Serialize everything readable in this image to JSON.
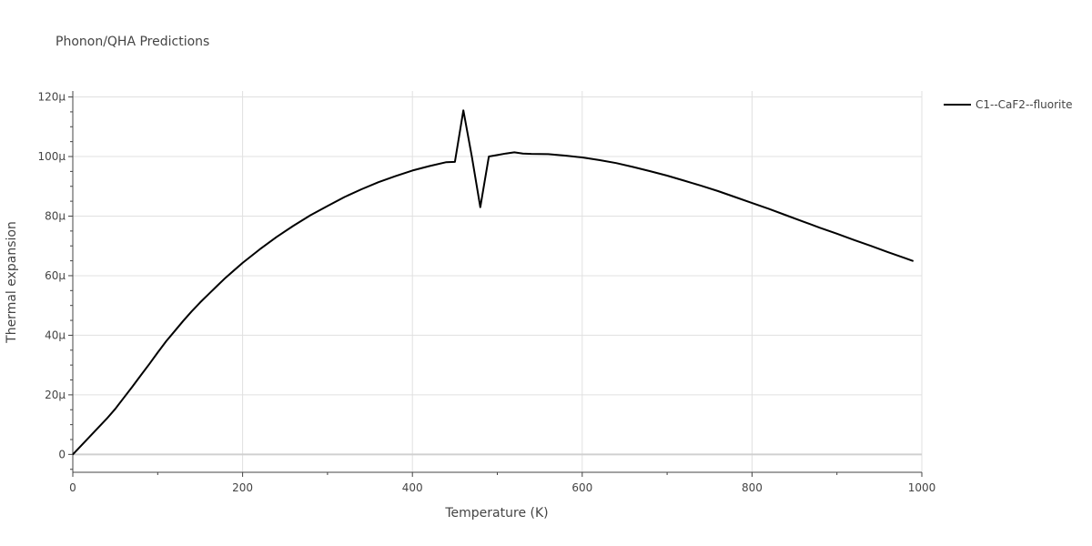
{
  "chart_data": {
    "type": "line",
    "title": "Phonon/QHA Predictions",
    "xlabel": "Temperature (K)",
    "ylabel": "Thermal expansion",
    "xlim": [
      0,
      1000
    ],
    "ylim": [
      -6,
      122
    ],
    "x_ticks": [
      0,
      200,
      400,
      600,
      800,
      1000
    ],
    "x_tick_labels": [
      "0",
      "200",
      "400",
      "600",
      "800",
      "1000"
    ],
    "y_ticks": [
      0,
      20,
      40,
      60,
      80,
      100,
      120
    ],
    "y_tick_labels": [
      "0",
      "20μ",
      "40μ",
      "60μ",
      "80μ",
      "100μ",
      "120μ"
    ],
    "y_unit_note": "values in units of 1e-6",
    "grid": true,
    "legend_position": "top-right",
    "series": [
      {
        "name": "C1--CaF2--fluorite",
        "color": "#000000",
        "x": [
          0,
          20,
          40,
          50,
          60,
          70,
          80,
          90,
          100,
          110,
          120,
          130,
          140,
          150,
          160,
          170,
          180,
          200,
          220,
          240,
          260,
          280,
          300,
          320,
          340,
          360,
          380,
          400,
          420,
          440,
          450,
          460,
          470,
          480,
          490,
          500,
          510,
          520,
          530,
          540,
          560,
          580,
          600,
          620,
          640,
          660,
          680,
          700,
          720,
          740,
          760,
          780,
          800,
          820,
          840,
          860,
          880,
          900,
          920,
          940,
          960,
          980,
          990
        ],
        "y": [
          0,
          6,
          12,
          15.3,
          19,
          22.7,
          26.5,
          30.3,
          34.2,
          38,
          41.4,
          44.8,
          48,
          51,
          53.8,
          56.6,
          59.3,
          64.3,
          68.8,
          73,
          76.8,
          80.3,
          83.4,
          86.4,
          89,
          91.4,
          93.4,
          95.3,
          96.8,
          98.1,
          98.2,
          115.5,
          100,
          83,
          100,
          100.5,
          101,
          101.4,
          101,
          100.9,
          100.8,
          100.3,
          99.7,
          98.8,
          97.8,
          96.5,
          95.1,
          93.6,
          91.9,
          90.2,
          88.4,
          86.4,
          84.4,
          82.4,
          80.3,
          78.2,
          76.1,
          74.1,
          72,
          70,
          67.9,
          65.9,
          64.9
        ]
      }
    ]
  }
}
